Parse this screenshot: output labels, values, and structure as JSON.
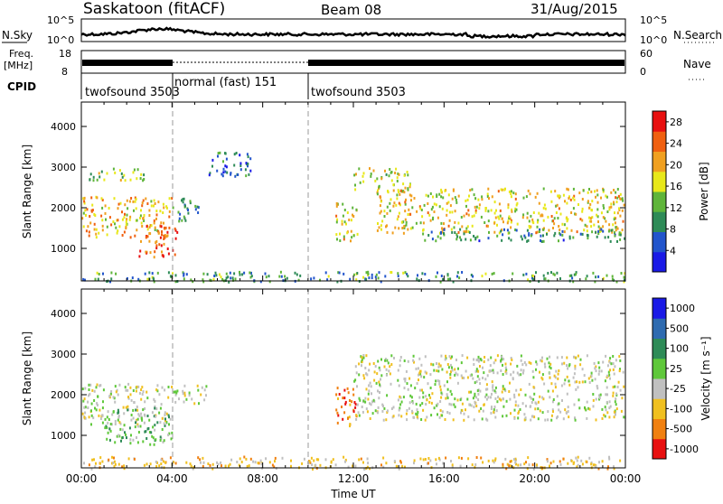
{
  "header": {
    "station": "Saskatoon (fitACF)",
    "beam": "Beam 08",
    "date": "31/Aug/2015"
  },
  "panels": {
    "nsky": {
      "left_label": "N.Sky",
      "right_label": "N.Search",
      "left_ticks": [
        "10^5",
        "10^0"
      ],
      "right_ticks": [
        "10^5",
        "10^0"
      ]
    },
    "freq": {
      "left_label_1": "Freq.",
      "left_label_2": "[MHz]",
      "left_ticks": [
        "18",
        "8"
      ],
      "right_ticks": [
        "60",
        "0"
      ],
      "right_label": "Nave"
    },
    "cpid": {
      "label": "CPID",
      "segments": [
        {
          "name": "twofsound 3503",
          "start_h": 0,
          "end_h": 4
        },
        {
          "name": "normal (fast) 151",
          "start_h": 4,
          "end_h": 10
        },
        {
          "name": "twofsound 3503",
          "start_h": 10,
          "end_h": 24
        }
      ]
    }
  },
  "chart_data": [
    {
      "type": "heatmap",
      "title": "",
      "xlabel": "",
      "ylabel": "Slant Range [km]",
      "xlim": [
        0,
        24
      ],
      "ylim": [
        200,
        4600
      ],
      "yticks": [
        "1000",
        "2000",
        "3000",
        "4000"
      ],
      "colorbar_label": "Power [dB]",
      "colorbar_ticks": [
        "4",
        "8",
        "12",
        "16",
        "20",
        "24",
        "28"
      ],
      "colorbar_range": [
        0,
        30
      ],
      "colors": [
        "#1a1ae6",
        "#2255cc",
        "#2e8b57",
        "#5fb53a",
        "#e8e81a",
        "#f0a020",
        "#f06010",
        "#e81010"
      ],
      "scatter_bands": [
        {
          "x0": 0.0,
          "x1": 4.0,
          "y0": 1300,
          "y1": 2300,
          "val": 20
        },
        {
          "x0": 0.3,
          "x1": 3.0,
          "y0": 2700,
          "y1": 3000,
          "val": 14
        },
        {
          "x0": 2.5,
          "x1": 4.2,
          "y0": 800,
          "y1": 1600,
          "val": 26
        },
        {
          "x0": 4.0,
          "x1": 5.2,
          "y0": 1700,
          "y1": 2300,
          "val": 8
        },
        {
          "x0": 5.5,
          "x1": 7.5,
          "y0": 2800,
          "y1": 3400,
          "val": 6
        },
        {
          "x0": 11.2,
          "x1": 12.2,
          "y0": 1200,
          "y1": 2200,
          "val": 18
        },
        {
          "x0": 12.0,
          "x1": 14.5,
          "y0": 2400,
          "y1": 3000,
          "val": 16
        },
        {
          "x0": 13.0,
          "x1": 24.0,
          "y0": 1400,
          "y1": 2500,
          "val": 18
        },
        {
          "x0": 15.0,
          "x1": 24.0,
          "y0": 1200,
          "y1": 1500,
          "val": 8
        },
        {
          "x0": 0.0,
          "x1": 24.0,
          "y0": 200,
          "y1": 450,
          "val": 10
        }
      ]
    },
    {
      "type": "heatmap",
      "title": "",
      "xlabel": "Time UT",
      "ylabel": "Slant Range [km]",
      "xlim": [
        0,
        24
      ],
      "ylim": [
        200,
        4600
      ],
      "xticks": [
        "00:00",
        "04:00",
        "08:00",
        "12:00",
        "16:00",
        "20:00",
        "00:00"
      ],
      "yticks": [
        "1000",
        "2000",
        "3000",
        "4000"
      ],
      "colorbar_label": "Velocity [m s⁻¹]",
      "colorbar_ticks": [
        "1000",
        "500",
        "100",
        "25",
        "-25",
        "-100",
        "-500",
        "-1000"
      ],
      "colors": [
        "#1a1ae6",
        "#2e6bb0",
        "#2e8b57",
        "#5fc83a",
        "#c0c0c0",
        "#f0c020",
        "#f08010",
        "#e81010"
      ],
      "scatter_bands": [
        {
          "x0": 0.0,
          "x1": 4.0,
          "y0": 1300,
          "y1": 2300,
          "val": 4
        },
        {
          "x0": 1.0,
          "x1": 4.0,
          "y0": 800,
          "y1": 1700,
          "val": 3
        },
        {
          "x0": 4.0,
          "x1": 5.5,
          "y0": 1800,
          "y1": 2300,
          "val": 4
        },
        {
          "x0": 11.2,
          "x1": 12.2,
          "y0": 1200,
          "y1": 2200,
          "val": 6
        },
        {
          "x0": 12.0,
          "x1": 24.0,
          "y0": 1400,
          "y1": 3000,
          "val": 4
        },
        {
          "x0": 0.0,
          "x1": 24.0,
          "y0": 200,
          "y1": 500,
          "val": 5
        }
      ]
    }
  ]
}
